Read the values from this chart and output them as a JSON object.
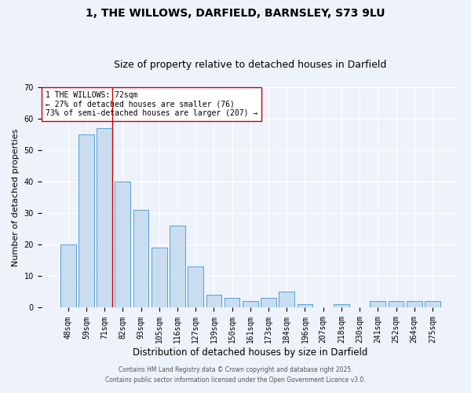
{
  "title": "1, THE WILLOWS, DARFIELD, BARNSLEY, S73 9LU",
  "subtitle": "Size of property relative to detached houses in Darfield",
  "xlabel": "Distribution of detached houses by size in Darfield",
  "ylabel": "Number of detached properties",
  "bar_labels": [
    "48sqm",
    "59sqm",
    "71sqm",
    "82sqm",
    "93sqm",
    "105sqm",
    "116sqm",
    "127sqm",
    "139sqm",
    "150sqm",
    "161sqm",
    "173sqm",
    "184sqm",
    "196sqm",
    "207sqm",
    "218sqm",
    "230sqm",
    "241sqm",
    "252sqm",
    "264sqm",
    "275sqm"
  ],
  "bar_values": [
    20,
    55,
    57,
    40,
    31,
    19,
    26,
    13,
    4,
    3,
    2,
    3,
    5,
    1,
    0,
    1,
    0,
    2,
    2,
    2,
    2
  ],
  "bar_color": "#c8ddf0",
  "bar_edge_color": "#5a9fd4",
  "vline_color": "#cc0000",
  "vline_bar_index": 2,
  "ylim": [
    0,
    70
  ],
  "annotation_title": "1 THE WILLOWS: 72sqm",
  "annotation_line1": "← 27% of detached houses are smaller (76)",
  "annotation_line2": "73% of semi-detached houses are larger (207) →",
  "annotation_box_color": "#ffffff",
  "annotation_box_edge": "#cc0000",
  "footer1": "Contains HM Land Registry data © Crown copyright and database right 2025.",
  "footer2": "Contains public sector information licensed under the Open Government Licence v3.0.",
  "background_color": "#eef2fb",
  "grid_color": "#ffffff",
  "title_fontsize": 10,
  "subtitle_fontsize": 9,
  "xlabel_fontsize": 8.5,
  "ylabel_fontsize": 8,
  "tick_fontsize": 7,
  "annotation_fontsize": 7,
  "footer_fontsize": 5.5
}
